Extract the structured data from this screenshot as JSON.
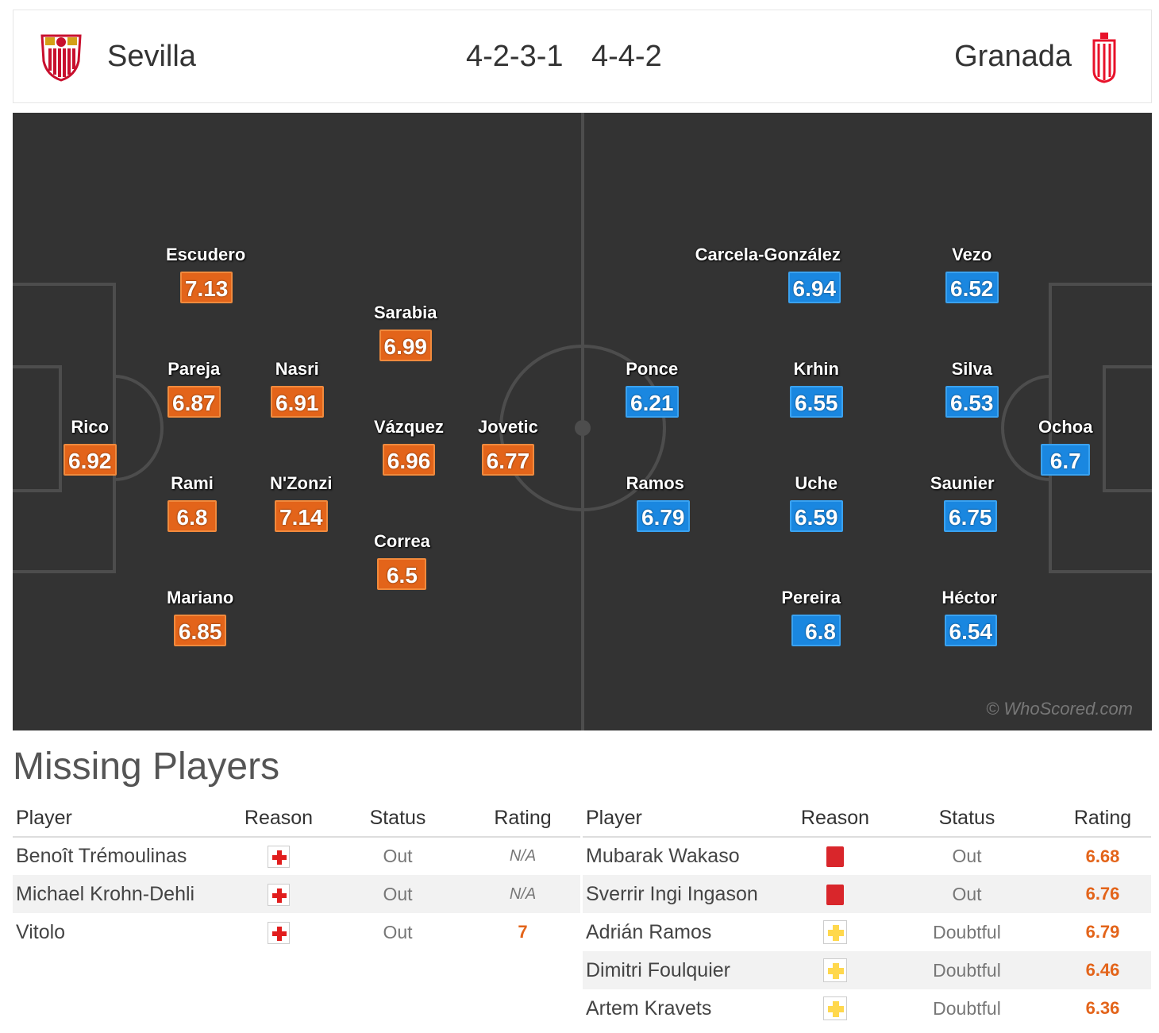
{
  "header": {
    "home_team": "Sevilla",
    "home_formation": "4-2-3-1",
    "away_formation": "4-4-2",
    "away_team": "Granada",
    "home_crest_icon": "sevilla-crest-icon",
    "away_crest_icon": "granada-crest-icon"
  },
  "pitch": {
    "watermark": "© WhoScored.com",
    "home_players": [
      {
        "name": "Escudero",
        "rating": "7.13"
      },
      {
        "name": "Sarabia",
        "rating": "6.99"
      },
      {
        "name": "Pareja",
        "rating": "6.87"
      },
      {
        "name": "Nasri",
        "rating": "6.91"
      },
      {
        "name": "Rico",
        "rating": "6.92"
      },
      {
        "name": "Vázquez",
        "rating": "6.96"
      },
      {
        "name": "Jovetic",
        "rating": "6.77"
      },
      {
        "name": "Rami",
        "rating": "6.8"
      },
      {
        "name": "N'Zonzi",
        "rating": "7.14"
      },
      {
        "name": "Correa",
        "rating": "6.5"
      },
      {
        "name": "Mariano",
        "rating": "6.85"
      }
    ],
    "away_players": [
      {
        "name": "Carcela-González",
        "rating": "6.94"
      },
      {
        "name": "Vezo",
        "rating": "6.52"
      },
      {
        "name": "Ponce",
        "rating": "6.21"
      },
      {
        "name": "Krhin",
        "rating": "6.55"
      },
      {
        "name": "Silva",
        "rating": "6.53"
      },
      {
        "name": "Ochoa",
        "rating": "6.7"
      },
      {
        "name": "Ramos",
        "rating": "6.79"
      },
      {
        "name": "Uche",
        "rating": "6.59"
      },
      {
        "name": "Saunier",
        "rating": "6.75"
      },
      {
        "name": "Pereira",
        "rating": "6.8"
      },
      {
        "name": "Héctor",
        "rating": "6.54"
      }
    ],
    "colors": {
      "home": "#e3641a",
      "away": "#1a87e0",
      "pitch": "#333333"
    }
  },
  "missing": {
    "title": "Missing Players",
    "columns": {
      "player": "Player",
      "reason": "Reason",
      "status": "Status",
      "rating": "Rating"
    },
    "home": [
      {
        "player": "Benoît Trémoulinas",
        "reason": "injury-icon",
        "status": "Out",
        "rating": "N/A"
      },
      {
        "player": "Michael Krohn-Dehli",
        "reason": "injury-icon",
        "status": "Out",
        "rating": "N/A"
      },
      {
        "player": "Vitolo",
        "reason": "injury-icon",
        "status": "Out",
        "rating": "7"
      }
    ],
    "away": [
      {
        "player": "Mubarak Wakaso",
        "reason": "red-card-icon",
        "status": "Out",
        "rating": "6.68"
      },
      {
        "player": "Sverrir Ingi Ingason",
        "reason": "red-card-icon",
        "status": "Out",
        "rating": "6.76"
      },
      {
        "player": "Adrián Ramos",
        "reason": "doubtful-icon",
        "status": "Doubtful",
        "rating": "6.79"
      },
      {
        "player": "Dimitri Foulquier",
        "reason": "doubtful-icon",
        "status": "Doubtful",
        "rating": "6.46"
      },
      {
        "player": "Artem Kravets",
        "reason": "doubtful-icon",
        "status": "Doubtful",
        "rating": "6.36"
      }
    ]
  }
}
